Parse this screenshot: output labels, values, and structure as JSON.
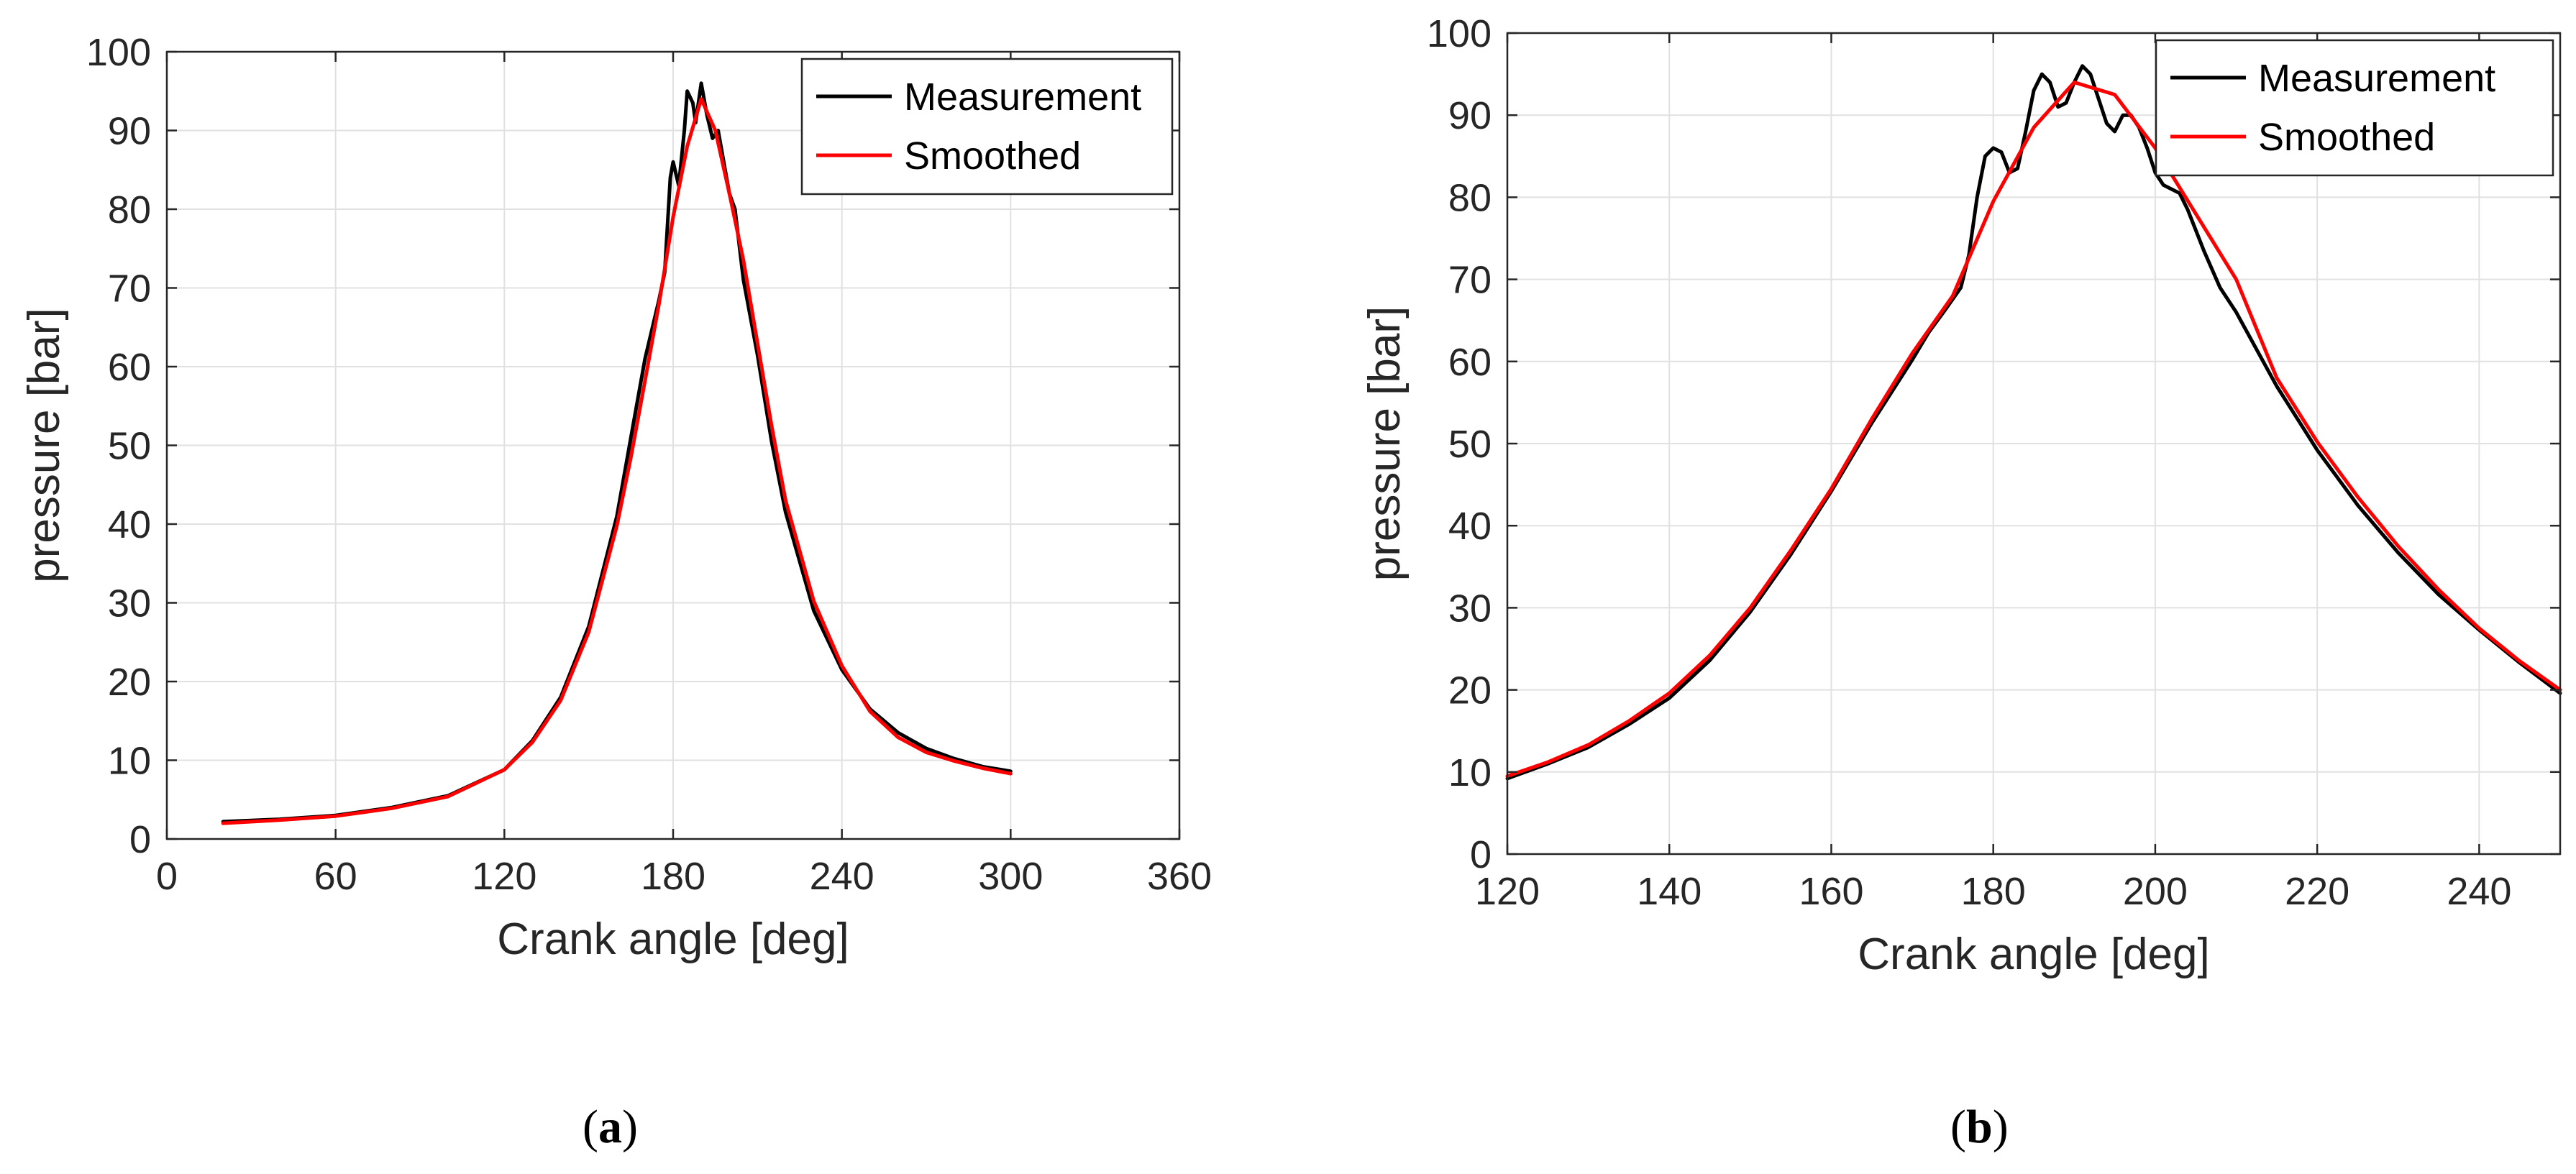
{
  "colors": {
    "measurement": "#000000",
    "smoothed": "#ff0000",
    "grid": "#e1e1e1",
    "axis": "#262626"
  },
  "chart_data": [
    {
      "type": "line",
      "panel": "a",
      "title": "",
      "xlabel": "Crank angle [deg]",
      "ylabel": "pressure [bar]",
      "xlim": [
        0,
        360
      ],
      "ylim": [
        0,
        100
      ],
      "xticks": [
        0,
        60,
        120,
        180,
        240,
        300,
        360
      ],
      "yticks": [
        0,
        10,
        20,
        30,
        40,
        50,
        60,
        70,
        80,
        90,
        100
      ],
      "grid": true,
      "legend_position": "top-right",
      "series": [
        {
          "name": "Measurement",
          "color": "#000000",
          "x": [
            20,
            40,
            60,
            80,
            100,
            120,
            130,
            140,
            150,
            160,
            165,
            170,
            175,
            177,
            179,
            180,
            182,
            184,
            185,
            187,
            188,
            190,
            192,
            194,
            196,
            198,
            200,
            202,
            205,
            210,
            215,
            220,
            230,
            240,
            250,
            260,
            270,
            280,
            290,
            300
          ],
          "y": [
            2.2,
            2.5,
            3.0,
            4.0,
            5.5,
            8.8,
            12.5,
            18.0,
            27.0,
            41.0,
            51.0,
            61.0,
            68.5,
            72.0,
            84.0,
            86.0,
            83.0,
            90.0,
            95.0,
            93.5,
            91.0,
            96.0,
            92.0,
            89.0,
            90.0,
            86.0,
            82.0,
            80.0,
            71.0,
            61.5,
            50.5,
            41.5,
            29.0,
            21.5,
            16.5,
            13.5,
            11.5,
            10.2,
            9.2,
            8.6
          ]
        },
        {
          "name": "Smoothed",
          "color": "#ff0000",
          "x": [
            20,
            40,
            60,
            80,
            100,
            120,
            130,
            140,
            150,
            160,
            165,
            170,
            175,
            180,
            185,
            190,
            195,
            200,
            205,
            210,
            215,
            220,
            230,
            240,
            250,
            260,
            270,
            280,
            290,
            300
          ],
          "y": [
            2.0,
            2.4,
            2.9,
            3.9,
            5.4,
            8.8,
            12.3,
            17.6,
            26.3,
            39.8,
            48.5,
            58.2,
            68.0,
            79.0,
            88.0,
            94.0,
            90.0,
            82.0,
            73.5,
            63.0,
            52.5,
            43.0,
            30.2,
            22.0,
            16.2,
            12.9,
            11.0,
            9.9,
            9.0,
            8.3
          ]
        }
      ]
    },
    {
      "type": "line",
      "panel": "b",
      "title": "",
      "xlabel": "Crank angle [deg]",
      "ylabel": "pressure [bar]",
      "xlim": [
        120,
        250
      ],
      "ylim": [
        0,
        100
      ],
      "xticks": [
        120,
        140,
        160,
        180,
        200,
        220,
        240
      ],
      "yticks": [
        0,
        10,
        20,
        30,
        40,
        50,
        60,
        70,
        80,
        90,
        100
      ],
      "grid": true,
      "legend_position": "top-right",
      "series": [
        {
          "name": "Measurement",
          "color": "#000000",
          "x": [
            120,
            125,
            130,
            135,
            140,
            145,
            150,
            155,
            160,
            165,
            170,
            172,
            174,
            176,
            177,
            178,
            179,
            180,
            181,
            182,
            183,
            184,
            185,
            186,
            187,
            188,
            189,
            190,
            191,
            192,
            193,
            194,
            195,
            196,
            197,
            198,
            199,
            200,
            201,
            202,
            203,
            204,
            206,
            208,
            210,
            215,
            220,
            225,
            230,
            235,
            240,
            245,
            250
          ],
          "y": [
            9.2,
            11.0,
            13.0,
            15.8,
            19.0,
            23.6,
            29.5,
            36.5,
            44.2,
            52.5,
            60.2,
            63.5,
            66.2,
            69.0,
            73.0,
            80.0,
            85.0,
            86.0,
            85.5,
            83.0,
            83.5,
            88.0,
            93.0,
            95.0,
            94.0,
            91.0,
            91.5,
            94.0,
            96.0,
            95.0,
            92.0,
            89.0,
            88.0,
            90.0,
            90.0,
            88.5,
            86.0,
            83.0,
            81.5,
            81.0,
            80.5,
            78.5,
            73.5,
            69.0,
            66.0,
            57.0,
            49.2,
            42.5,
            36.7,
            31.6,
            27.3,
            23.3,
            19.6
          ]
        },
        {
          "name": "Smoothed",
          "color": "#ff0000",
          "x": [
            120,
            125,
            130,
            135,
            140,
            145,
            150,
            155,
            160,
            165,
            170,
            175,
            180,
            185,
            190,
            195,
            200,
            205,
            210,
            215,
            220,
            225,
            230,
            235,
            240,
            245,
            250
          ],
          "y": [
            9.5,
            11.2,
            13.3,
            16.2,
            19.6,
            24.2,
            30.0,
            37.0,
            44.5,
            53.0,
            61.0,
            68.0,
            79.5,
            88.5,
            94.0,
            92.5,
            86.0,
            78.0,
            70.0,
            58.0,
            50.2,
            43.5,
            37.5,
            32.2,
            27.5,
            23.5,
            20.0
          ]
        }
      ]
    }
  ],
  "panels": {
    "a": {
      "open": "(",
      "letter": "a",
      "close": ")"
    },
    "b": {
      "open": "(",
      "letter": "b",
      "close": ")"
    }
  }
}
